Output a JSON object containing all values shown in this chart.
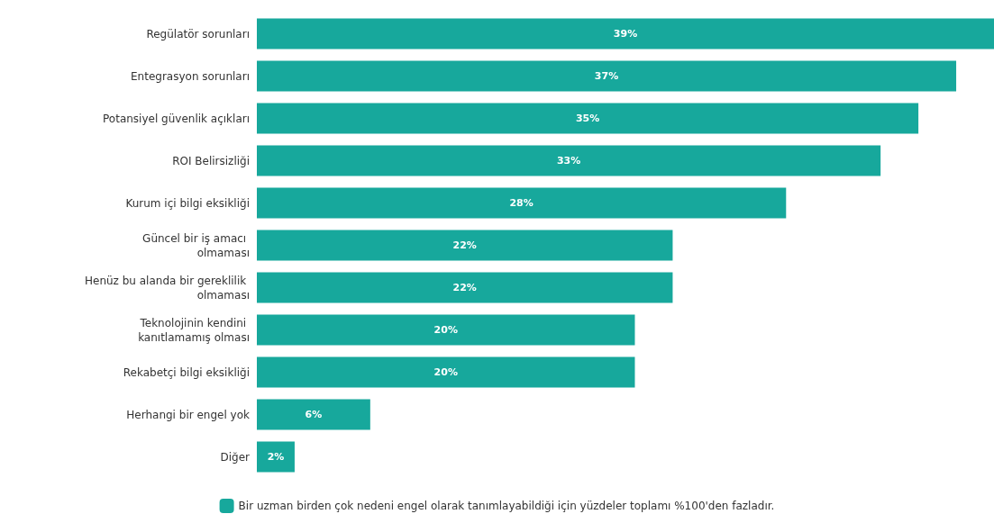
{
  "chart_data": {
    "type": "bar",
    "orientation": "horizontal",
    "categories": [
      "Regülatör sorunları",
      "Entegrasyon sorunları",
      "Potansiyel güvenlik açıkları",
      "ROI Belirsizliği",
      "Kurum içi bilgi eksikliği",
      "Güncel bir iş amacı olmaması",
      "Henüz bu alanda bir gereklilik olmaması",
      "Teknolojinin kendini kanıtlamamış olması",
      "Rekabetçi bilgi eksikliği",
      "Herhangi bir engel yok",
      "Diğer"
    ],
    "series": [
      {
        "name": "Bir uzman birden çok nedeni engel olarak tanımlayabildiği için yüzdeler toplamı %100'den fazladır.",
        "color": "#17a89c",
        "values": [
          39,
          37,
          35,
          33,
          28,
          22,
          22,
          20,
          20,
          6,
          2
        ],
        "value_labels": [
          "39%",
          "37%",
          "35%",
          "33%",
          "28%",
          "22%",
          "22%",
          "20%",
          "20%",
          "6%",
          "2%"
        ]
      }
    ],
    "legend": "bottom",
    "grid": false
  }
}
